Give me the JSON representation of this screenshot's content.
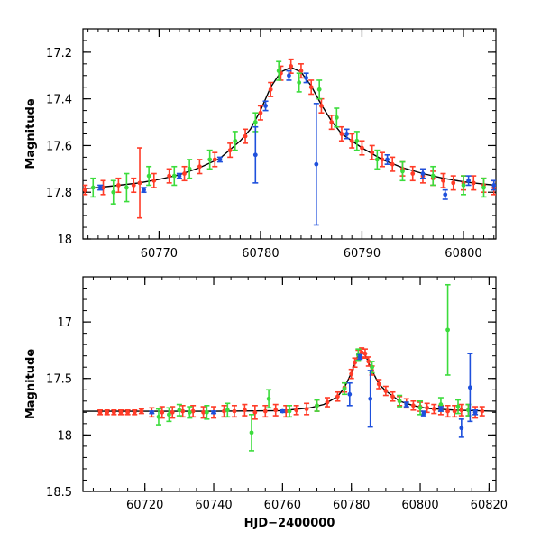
{
  "chart_data": [
    {
      "type": "scatter",
      "title": "",
      "xlabel": "",
      "ylabel": "Magnitude",
      "xlim": [
        60762.5,
        60803.2
      ],
      "ylim": [
        18.0,
        17.1
      ],
      "inverted_y": true,
      "xticks": [
        60770,
        60780,
        60790,
        60800
      ],
      "xtick_labels": [
        "60770",
        "60780",
        "60790",
        "60800"
      ],
      "yticks": [
        17.2,
        17.4,
        17.6,
        17.8,
        18.0
      ],
      "ytick_labels": [
        "17.2",
        "17.4",
        "17.6",
        "17.8",
        "18"
      ],
      "model": {
        "name": "",
        "color": "#000000",
        "points": [
          [
            60762.5,
            17.785
          ],
          [
            60764,
            17.78
          ],
          [
            60766,
            17.77
          ],
          [
            60768,
            17.76
          ],
          [
            60770,
            17.745
          ],
          [
            60772,
            17.725
          ],
          [
            60774,
            17.695
          ],
          [
            60776,
            17.655
          ],
          [
            60778,
            17.58
          ],
          [
            60779,
            17.53
          ],
          [
            60780,
            17.45
          ],
          [
            60781,
            17.35
          ],
          [
            60782,
            17.285
          ],
          [
            60783,
            17.265
          ],
          [
            60784,
            17.285
          ],
          [
            60785,
            17.345
          ],
          [
            60786,
            17.425
          ],
          [
            60787,
            17.495
          ],
          [
            60788,
            17.55
          ],
          [
            60790,
            17.61
          ],
          [
            60792,
            17.66
          ],
          [
            60794,
            17.695
          ],
          [
            60796,
            17.72
          ],
          [
            60798,
            17.74
          ],
          [
            60800,
            17.755
          ],
          [
            60802,
            17.765
          ],
          [
            60803.2,
            17.77
          ]
        ]
      },
      "series": [
        {
          "name": "",
          "color": "#ff3c28",
          "points": [
            [
              60762.7,
              17.79,
              0.02
            ],
            [
              60764.5,
              17.78,
              0.03
            ],
            [
              60766,
              17.77,
              0.03
            ],
            [
              60767.5,
              17.77,
              0.03
            ],
            [
              60768.1,
              17.76,
              0.15
            ],
            [
              60769.5,
              17.75,
              0.03
            ],
            [
              60771,
              17.73,
              0.03
            ],
            [
              60772.5,
              17.72,
              0.03
            ],
            [
              60774,
              17.69,
              0.03
            ],
            [
              60775.5,
              17.66,
              0.03
            ],
            [
              60777,
              17.62,
              0.03
            ],
            [
              60778.5,
              17.56,
              0.03
            ],
            [
              60780,
              17.46,
              0.03
            ],
            [
              60781,
              17.36,
              0.03
            ],
            [
              60782,
              17.29,
              0.03
            ],
            [
              60783,
              17.26,
              0.03
            ],
            [
              60784,
              17.28,
              0.03
            ],
            [
              60785,
              17.35,
              0.03
            ],
            [
              60786,
              17.43,
              0.03
            ],
            [
              60787,
              17.5,
              0.03
            ],
            [
              60788,
              17.55,
              0.03
            ],
            [
              60789,
              17.58,
              0.03
            ],
            [
              60790,
              17.61,
              0.03
            ],
            [
              60791,
              17.63,
              0.03
            ],
            [
              60792,
              17.66,
              0.03
            ],
            [
              60793,
              17.68,
              0.03
            ],
            [
              60794,
              17.7,
              0.03
            ],
            [
              60795,
              17.72,
              0.03
            ],
            [
              60796,
              17.73,
              0.03
            ],
            [
              60797,
              17.74,
              0.03
            ],
            [
              60798,
              17.75,
              0.03
            ],
            [
              60799,
              17.76,
              0.03
            ],
            [
              60800,
              17.76,
              0.03
            ],
            [
              60801,
              17.76,
              0.03
            ],
            [
              60802,
              17.77,
              0.03
            ],
            [
              60803,
              17.78,
              0.03
            ]
          ]
        },
        {
          "name": "",
          "color": "#3cdc3c",
          "points": [
            [
              60763.5,
              17.78,
              0.04
            ],
            [
              60765.5,
              17.8,
              0.05
            ],
            [
              60766.8,
              17.78,
              0.06
            ],
            [
              60769,
              17.73,
              0.04
            ],
            [
              60771.5,
              17.73,
              0.04
            ],
            [
              60773,
              17.7,
              0.04
            ],
            [
              60775,
              17.66,
              0.04
            ],
            [
              60777.5,
              17.58,
              0.04
            ],
            [
              60779.5,
              17.5,
              0.04
            ],
            [
              60781.8,
              17.28,
              0.04
            ],
            [
              60783.8,
              17.33,
              0.04
            ],
            [
              60785.8,
              17.36,
              0.04
            ],
            [
              60787.5,
              17.48,
              0.04
            ],
            [
              60789.5,
              17.58,
              0.04
            ],
            [
              60791.5,
              17.66,
              0.04
            ],
            [
              60794,
              17.71,
              0.04
            ],
            [
              60797,
              17.73,
              0.04
            ],
            [
              60800,
              17.77,
              0.04
            ],
            [
              60802,
              17.78,
              0.04
            ]
          ]
        },
        {
          "name": "",
          "color": "#1e50dc",
          "points": [
            [
              60764.2,
              17.78,
              0.01
            ],
            [
              60768.5,
              17.79,
              0.01
            ],
            [
              60772,
              17.73,
              0.01
            ],
            [
              60776,
              17.66,
              0.01
            ],
            [
              60779.5,
              17.64,
              0.12
            ],
            [
              60780.5,
              17.43,
              0.02
            ],
            [
              60782.8,
              17.3,
              0.02
            ],
            [
              60784.5,
              17.31,
              0.02
            ],
            [
              60785.5,
              17.68,
              0.26
            ],
            [
              60788.5,
              17.55,
              0.02
            ],
            [
              60792.5,
              17.66,
              0.02
            ],
            [
              60796,
              17.72,
              0.02
            ],
            [
              60798.2,
              17.81,
              0.02
            ],
            [
              60800.5,
              17.75,
              0.02
            ],
            [
              60803,
              17.77,
              0.02
            ]
          ]
        }
      ]
    },
    {
      "type": "scatter",
      "title": "",
      "xlabel": "HJD−2400000",
      "ylabel": "Magnitude",
      "xlim": [
        60702,
        60822
      ],
      "ylim": [
        18.5,
        16.6
      ],
      "inverted_y": true,
      "xticks": [
        60720,
        60740,
        60760,
        60780,
        60800,
        60820
      ],
      "xtick_labels": [
        "60720",
        "60740",
        "60760",
        "60780",
        "60800",
        "60820"
      ],
      "yticks": [
        17.0,
        17.5,
        18.0,
        18.5
      ],
      "ytick_labels": [
        "17",
        "17.5",
        "18",
        "18.5"
      ],
      "model": {
        "name": "",
        "color": "#000000",
        "points": [
          [
            60702,
            17.79
          ],
          [
            60740,
            17.79
          ],
          [
            60760,
            17.785
          ],
          [
            60768,
            17.76
          ],
          [
            60772,
            17.73
          ],
          [
            60776,
            17.66
          ],
          [
            60778,
            17.58
          ],
          [
            60780,
            17.45
          ],
          [
            60782,
            17.29
          ],
          [
            60783,
            17.265
          ],
          [
            60784,
            17.29
          ],
          [
            60786,
            17.43
          ],
          [
            60788,
            17.55
          ],
          [
            60790,
            17.61
          ],
          [
            60794,
            17.7
          ],
          [
            60798,
            17.74
          ],
          [
            60802,
            17.765
          ],
          [
            60810,
            17.78
          ],
          [
            60822,
            17.79
          ]
        ]
      },
      "series": [
        {
          "name": "",
          "color": "#ff3c28",
          "points": [
            [
              60707,
              17.8,
              0.02
            ],
            [
              60709,
              17.8,
              0.02
            ],
            [
              60711,
              17.8,
              0.02
            ],
            [
              60713,
              17.8,
              0.02
            ],
            [
              60715,
              17.8,
              0.02
            ],
            [
              60717,
              17.8,
              0.02
            ],
            [
              60719,
              17.79,
              0.02
            ],
            [
              60722,
              17.8,
              0.04
            ],
            [
              60725,
              17.8,
              0.05
            ],
            [
              60728,
              17.8,
              0.05
            ],
            [
              60731,
              17.79,
              0.05
            ],
            [
              60734,
              17.79,
              0.05
            ],
            [
              60737,
              17.8,
              0.05
            ],
            [
              60740,
              17.8,
              0.05
            ],
            [
              60743,
              17.79,
              0.05
            ],
            [
              60746,
              17.79,
              0.05
            ],
            [
              60749,
              17.78,
              0.05
            ],
            [
              60752,
              17.8,
              0.06
            ],
            [
              60755,
              17.79,
              0.05
            ],
            [
              60758,
              17.78,
              0.05
            ],
            [
              60761,
              17.79,
              0.05
            ],
            [
              60764,
              17.78,
              0.04
            ],
            [
              60767,
              17.77,
              0.05
            ],
            [
              60770,
              17.74,
              0.05
            ],
            [
              60773,
              17.71,
              0.04
            ],
            [
              60776,
              17.66,
              0.04
            ],
            [
              60778,
              17.58,
              0.04
            ],
            [
              60780,
              17.46,
              0.04
            ],
            [
              60781,
              17.36,
              0.04
            ],
            [
              60782,
              17.29,
              0.04
            ],
            [
              60783,
              17.27,
              0.04
            ],
            [
              60784,
              17.28,
              0.04
            ],
            [
              60785,
              17.35,
              0.04
            ],
            [
              60786,
              17.43,
              0.04
            ],
            [
              60788,
              17.55,
              0.04
            ],
            [
              60790,
              17.61,
              0.04
            ],
            [
              60792,
              17.66,
              0.04
            ],
            [
              60794,
              17.7,
              0.04
            ],
            [
              60796,
              17.72,
              0.04
            ],
            [
              60798,
              17.74,
              0.04
            ],
            [
              60800,
              17.75,
              0.04
            ],
            [
              60802,
              17.76,
              0.04
            ],
            [
              60804,
              17.77,
              0.04
            ],
            [
              60806,
              17.78,
              0.04
            ],
            [
              60808,
              17.79,
              0.05
            ],
            [
              60810,
              17.79,
              0.05
            ],
            [
              60812,
              17.78,
              0.05
            ],
            [
              60814,
              17.78,
              0.05
            ],
            [
              60816,
              17.8,
              0.05
            ],
            [
              60818,
              17.79,
              0.04
            ]
          ]
        },
        {
          "name": "",
          "color": "#3cdc3c",
          "points": [
            [
              60724,
              17.84,
              0.07
            ],
            [
              60727,
              17.82,
              0.06
            ],
            [
              60730,
              17.78,
              0.05
            ],
            [
              60733,
              17.8,
              0.05
            ],
            [
              60738,
              17.8,
              0.06
            ],
            [
              60744,
              17.78,
              0.06
            ],
            [
              60751,
              17.98,
              0.16
            ],
            [
              60756,
              17.68,
              0.08
            ],
            [
              60762,
              17.79,
              0.05
            ],
            [
              60770,
              17.74,
              0.05
            ],
            [
              60778,
              17.59,
              0.05
            ],
            [
              60782,
              17.29,
              0.05
            ],
            [
              60786,
              17.4,
              0.05
            ],
            [
              60794,
              17.7,
              0.05
            ],
            [
              60800,
              17.76,
              0.06
            ],
            [
              60806,
              17.73,
              0.06
            ],
            [
              60808,
              17.07,
              0.4
            ],
            [
              60811,
              17.75,
              0.06
            ],
            [
              60814,
              17.78,
              0.05
            ]
          ]
        },
        {
          "name": "",
          "color": "#1e50dc",
          "points": [
            [
              60722,
              17.8,
              0.01
            ],
            [
              60740,
              17.8,
              0.01
            ],
            [
              60760,
              17.79,
              0.01
            ],
            [
              60779.5,
              17.64,
              0.1
            ],
            [
              60782.5,
              17.31,
              0.02
            ],
            [
              60785.5,
              17.68,
              0.25
            ],
            [
              60796,
              17.73,
              0.02
            ],
            [
              60801,
              17.81,
              0.02
            ],
            [
              60806,
              17.77,
              0.02
            ],
            [
              60812,
              17.94,
              0.08
            ],
            [
              60814.5,
              17.58,
              0.3
            ],
            [
              60816,
              17.8,
              0.02
            ]
          ]
        }
      ]
    }
  ]
}
